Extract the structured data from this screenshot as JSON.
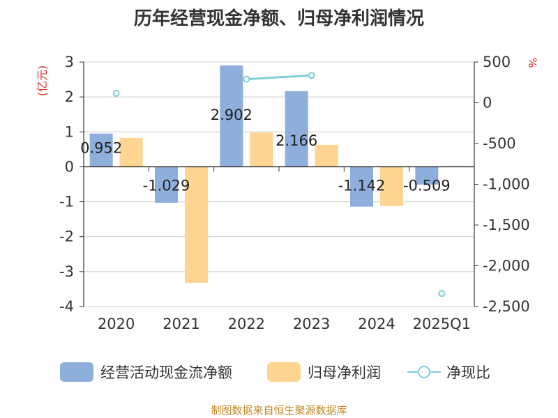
{
  "title": "历年经营现金净额、归母净利润情况",
  "source": "制图数据来自恒生聚源数据库",
  "colors": {
    "cash_flow": "#8eaedc",
    "net_profit": "#ffd591",
    "ratio": "#7fcfd8",
    "axis": "#333333",
    "grid": "#cccccc",
    "unit": "#e03030"
  },
  "chart_data": {
    "type": "bar",
    "categories": [
      "2020",
      "2021",
      "2022",
      "2023",
      "2024",
      "2025Q1"
    ],
    "series": [
      {
        "name": "经营活动现金流净额",
        "type": "bar",
        "axis": "left",
        "values": [
          0.952,
          -1.029,
          2.902,
          2.166,
          -1.142,
          -0.509
        ],
        "data_labels": [
          "0.952",
          "-1.029",
          "2.902",
          "2.166",
          "-1.142",
          "-0.509"
        ]
      },
      {
        "name": "归母净利润",
        "type": "bar",
        "axis": "left",
        "values": [
          0.83,
          -3.32,
          0.98,
          0.63,
          -1.12,
          0.02
        ]
      },
      {
        "name": "净现比",
        "type": "line",
        "axis": "right",
        "values": [
          115,
          null,
          290,
          335,
          null,
          -2340
        ]
      }
    ],
    "left_axis": {
      "label": "(亿元)",
      "min": -4,
      "max": 3,
      "ticks": [
        3,
        2,
        1,
        0,
        -1,
        -2,
        -3,
        -4
      ],
      "tick_labels": [
        "3",
        "2",
        "1",
        "0",
        "-1",
        "-2",
        "-3",
        "-4"
      ]
    },
    "right_axis": {
      "label": "%",
      "min": -2500,
      "max": 500,
      "ticks": [
        500,
        0,
        -500,
        -1000,
        -1500,
        -2000,
        -2500
      ],
      "tick_labels": [
        "500",
        "0",
        "-500",
        "-1,000",
        "-1,500",
        "-2,000",
        "-2,500"
      ]
    },
    "grid": true,
    "legend_position": "bottom"
  }
}
